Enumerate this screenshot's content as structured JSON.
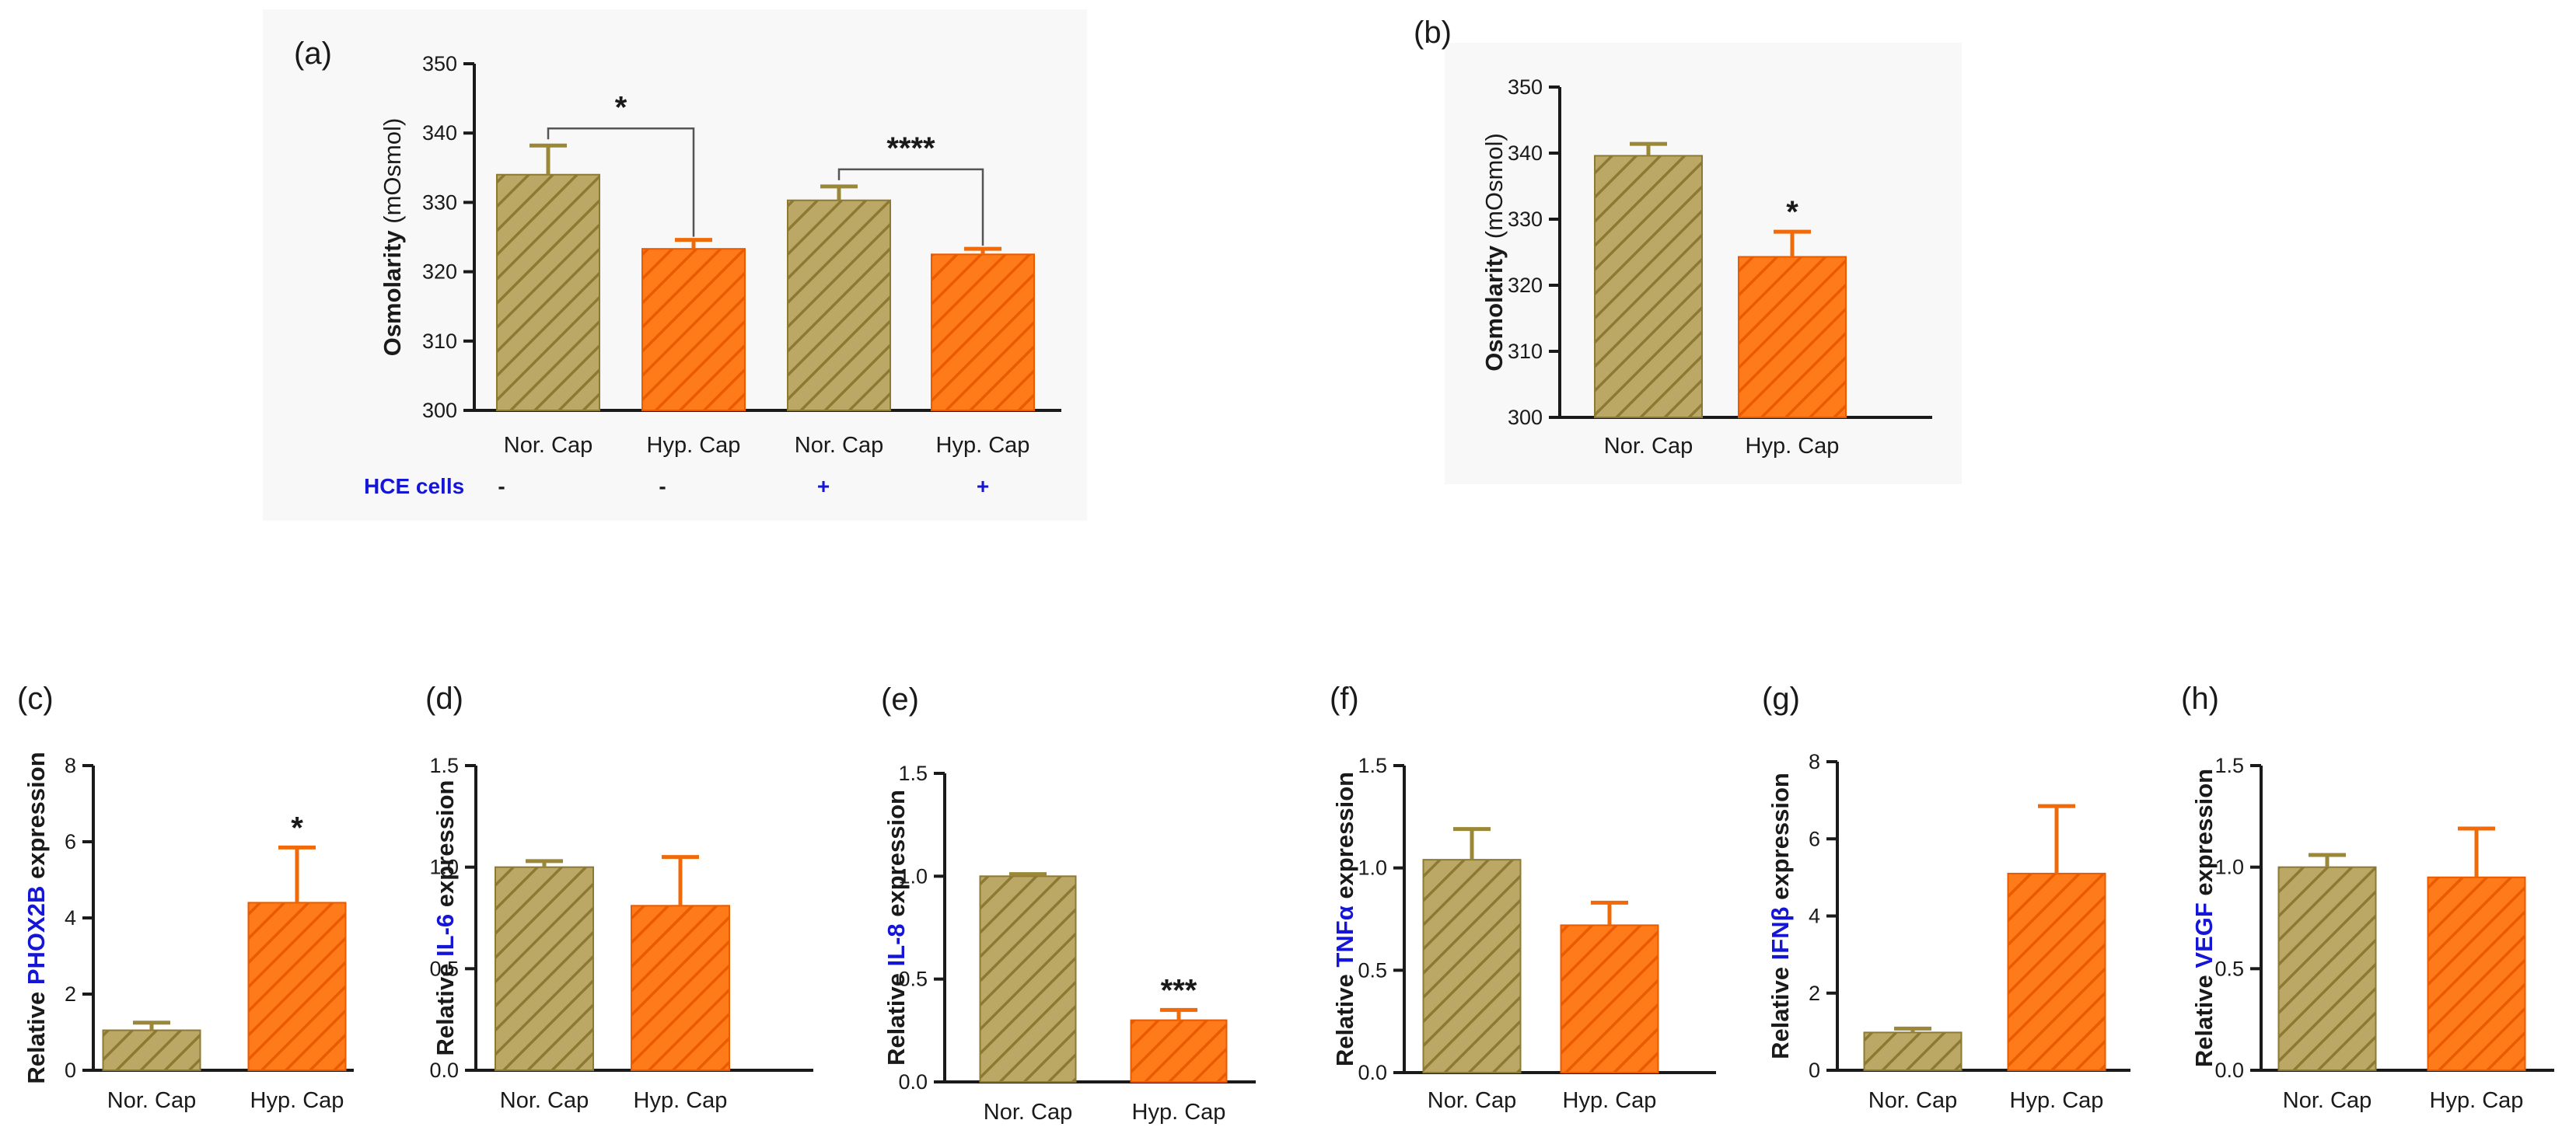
{
  "colors": {
    "normal": "#bba866",
    "normal_stroke": "#8d7a32",
    "hypo": "#ff7a18",
    "hypo_stroke": "#ea5a00",
    "accent_blue": "#1515d6",
    "text": "#1a1a1a"
  },
  "chart_data": [
    {
      "id": "a",
      "type": "bar",
      "panel_label": "(a)",
      "ylabel_bold": "Osmolarity",
      "ylabel_rest": " (mOsmol)",
      "ylim": [
        300,
        350
      ],
      "yticks": [
        300,
        310,
        320,
        330,
        340,
        350
      ],
      "categories": [
        "Nor. Cap",
        "Hyp. Cap",
        "Nor. Cap",
        "Hyp. Cap"
      ],
      "values": [
        334,
        323.3,
        330.3,
        322.5
      ],
      "errors": [
        4.2,
        1.3,
        2.0,
        0.8
      ],
      "kinds": [
        "normal",
        "hypo",
        "normal",
        "hypo"
      ],
      "significance": [
        {
          "from": 0,
          "to": 1,
          "label": "*"
        },
        {
          "from": 2,
          "to": 3,
          "label": "****"
        }
      ],
      "condition": {
        "label": "HCE cells",
        "values": [
          "-",
          "-",
          "+",
          "+"
        ]
      }
    },
    {
      "id": "b",
      "type": "bar",
      "panel_label": "(b)",
      "ylabel_bold": "Osmolarity",
      "ylabel_rest": " (mOsmol)",
      "ylim": [
        300,
        350
      ],
      "yticks": [
        300,
        310,
        320,
        330,
        340,
        350
      ],
      "categories": [
        "Nor. Cap",
        "Hyp. Cap"
      ],
      "values": [
        339.6,
        324.3
      ],
      "errors": [
        1.8,
        3.8
      ],
      "kinds": [
        "normal",
        "hypo"
      ],
      "markers": [
        "",
        "*"
      ]
    },
    {
      "id": "c",
      "type": "bar",
      "panel_label": "(c)",
      "ylabel_prefix": "Relative ",
      "ylabel_gene": "PHOX2B",
      "ylabel_suffix": " expression",
      "ylim": [
        0,
        8
      ],
      "yticks": [
        0,
        2,
        4,
        6,
        8
      ],
      "ytick_labels": [
        "0",
        "2",
        "4",
        "6",
        "8"
      ],
      "categories": [
        "Nor. Cap",
        "Hyp. Cap"
      ],
      "values": [
        1.05,
        4.4
      ],
      "errors": [
        0.2,
        1.45
      ],
      "kinds": [
        "normal",
        "hypo"
      ],
      "markers": [
        "",
        "*"
      ]
    },
    {
      "id": "d",
      "type": "bar",
      "panel_label": "(d)",
      "ylabel_prefix": "Relative ",
      "ylabel_gene": "IL-6",
      "ylabel_suffix": " expression",
      "ylim": [
        0,
        1.5
      ],
      "yticks": [
        0,
        0.5,
        1.0,
        1.5
      ],
      "ytick_labels": [
        "0.0",
        "0.5",
        "1.0",
        "1.5"
      ],
      "categories": [
        "Nor. Cap",
        "Hyp. Cap"
      ],
      "values": [
        1.0,
        0.81
      ],
      "errors": [
        0.03,
        0.24
      ],
      "kinds": [
        "normal",
        "hypo"
      ],
      "markers": [
        "",
        ""
      ]
    },
    {
      "id": "e",
      "type": "bar",
      "panel_label": "(e)",
      "ylabel_prefix": "Relative ",
      "ylabel_gene": "IL-8",
      "ylabel_suffix": " expression",
      "ylim": [
        0,
        1.5
      ],
      "yticks": [
        0,
        0.5,
        1.0,
        1.5
      ],
      "ytick_labels": [
        "0.0",
        "0.5",
        "1.0",
        "1.5"
      ],
      "categories": [
        "Nor. Cap",
        "Hyp. Cap"
      ],
      "values": [
        1.0,
        0.3
      ],
      "errors": [
        0.01,
        0.05
      ],
      "kinds": [
        "normal",
        "hypo"
      ],
      "markers": [
        "",
        "***"
      ]
    },
    {
      "id": "f",
      "type": "bar",
      "panel_label": "(f)",
      "ylabel_prefix": "Relative ",
      "ylabel_gene": "TNFα",
      "ylabel_suffix": " expression",
      "ylim": [
        0,
        1.5
      ],
      "yticks": [
        0,
        0.5,
        1.0,
        1.5
      ],
      "ytick_labels": [
        "0.0",
        "0.5",
        "1.0",
        "1.5"
      ],
      "categories": [
        "Nor. Cap",
        "Hyp. Cap"
      ],
      "values": [
        1.04,
        0.72
      ],
      "errors": [
        0.15,
        0.11
      ],
      "kinds": [
        "normal",
        "hypo"
      ],
      "markers": [
        "",
        ""
      ]
    },
    {
      "id": "g",
      "type": "bar",
      "panel_label": "(g)",
      "ylabel_prefix": "Relative ",
      "ylabel_gene": "IFNβ",
      "ylabel_suffix": " expression",
      "ylim": [
        0,
        8
      ],
      "yticks": [
        0,
        2,
        4,
        6,
        8
      ],
      "ytick_labels": [
        "0",
        "2",
        "4",
        "6",
        "8"
      ],
      "categories": [
        "Nor. Cap",
        "Hyp. Cap"
      ],
      "values": [
        0.98,
        5.1
      ],
      "errors": [
        0.1,
        1.75
      ],
      "kinds": [
        "normal",
        "hypo"
      ],
      "markers": [
        "",
        ""
      ]
    },
    {
      "id": "h",
      "type": "bar",
      "panel_label": "(h)",
      "ylabel_prefix": "Relative ",
      "ylabel_gene": "VEGF",
      "ylabel_suffix": " expression",
      "ylim": [
        0,
        1.5
      ],
      "yticks": [
        0,
        0.5,
        1.0,
        1.5
      ],
      "ytick_labels": [
        "0.0",
        "0.5",
        "1.0",
        "1.5"
      ],
      "categories": [
        "Nor. Cap",
        "Hyp. Cap"
      ],
      "values": [
        1.0,
        0.95
      ],
      "errors": [
        0.06,
        0.24
      ],
      "kinds": [
        "normal",
        "hypo"
      ],
      "markers": [
        "",
        ""
      ]
    }
  ]
}
